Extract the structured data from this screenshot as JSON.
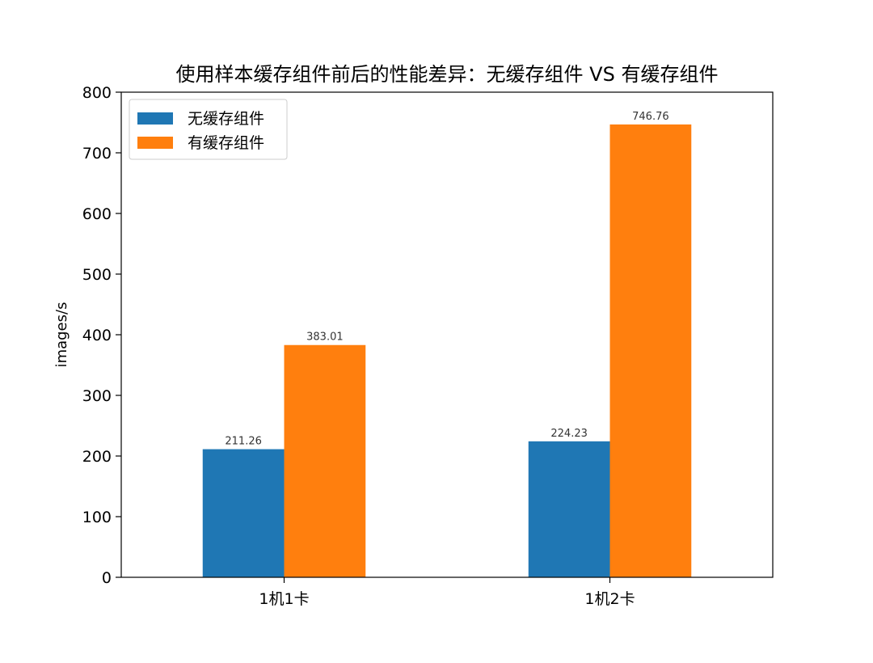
{
  "chart_data": {
    "type": "bar",
    "title": "使用样本缓存组件前后的性能差异：无缓存组件 VS 有缓存组件",
    "xlabel": "",
    "ylabel": "images/s",
    "categories": [
      "1机1卡",
      "1机2卡"
    ],
    "series": [
      {
        "name": "无缓存组件",
        "values": [
          211.26,
          224.23
        ],
        "color": "#1f77b4"
      },
      {
        "name": "有缓存组件",
        "values": [
          383.01,
          746.76
        ],
        "color": "#ff7f0e"
      }
    ],
    "ylim": [
      0,
      800
    ],
    "yticks": [
      0,
      100,
      200,
      300,
      400,
      500,
      600,
      700,
      800
    ],
    "value_labels": [
      "211.26",
      "224.23",
      "383.01",
      "746.76"
    ],
    "legend_position": "top-left",
    "grid": false
  }
}
